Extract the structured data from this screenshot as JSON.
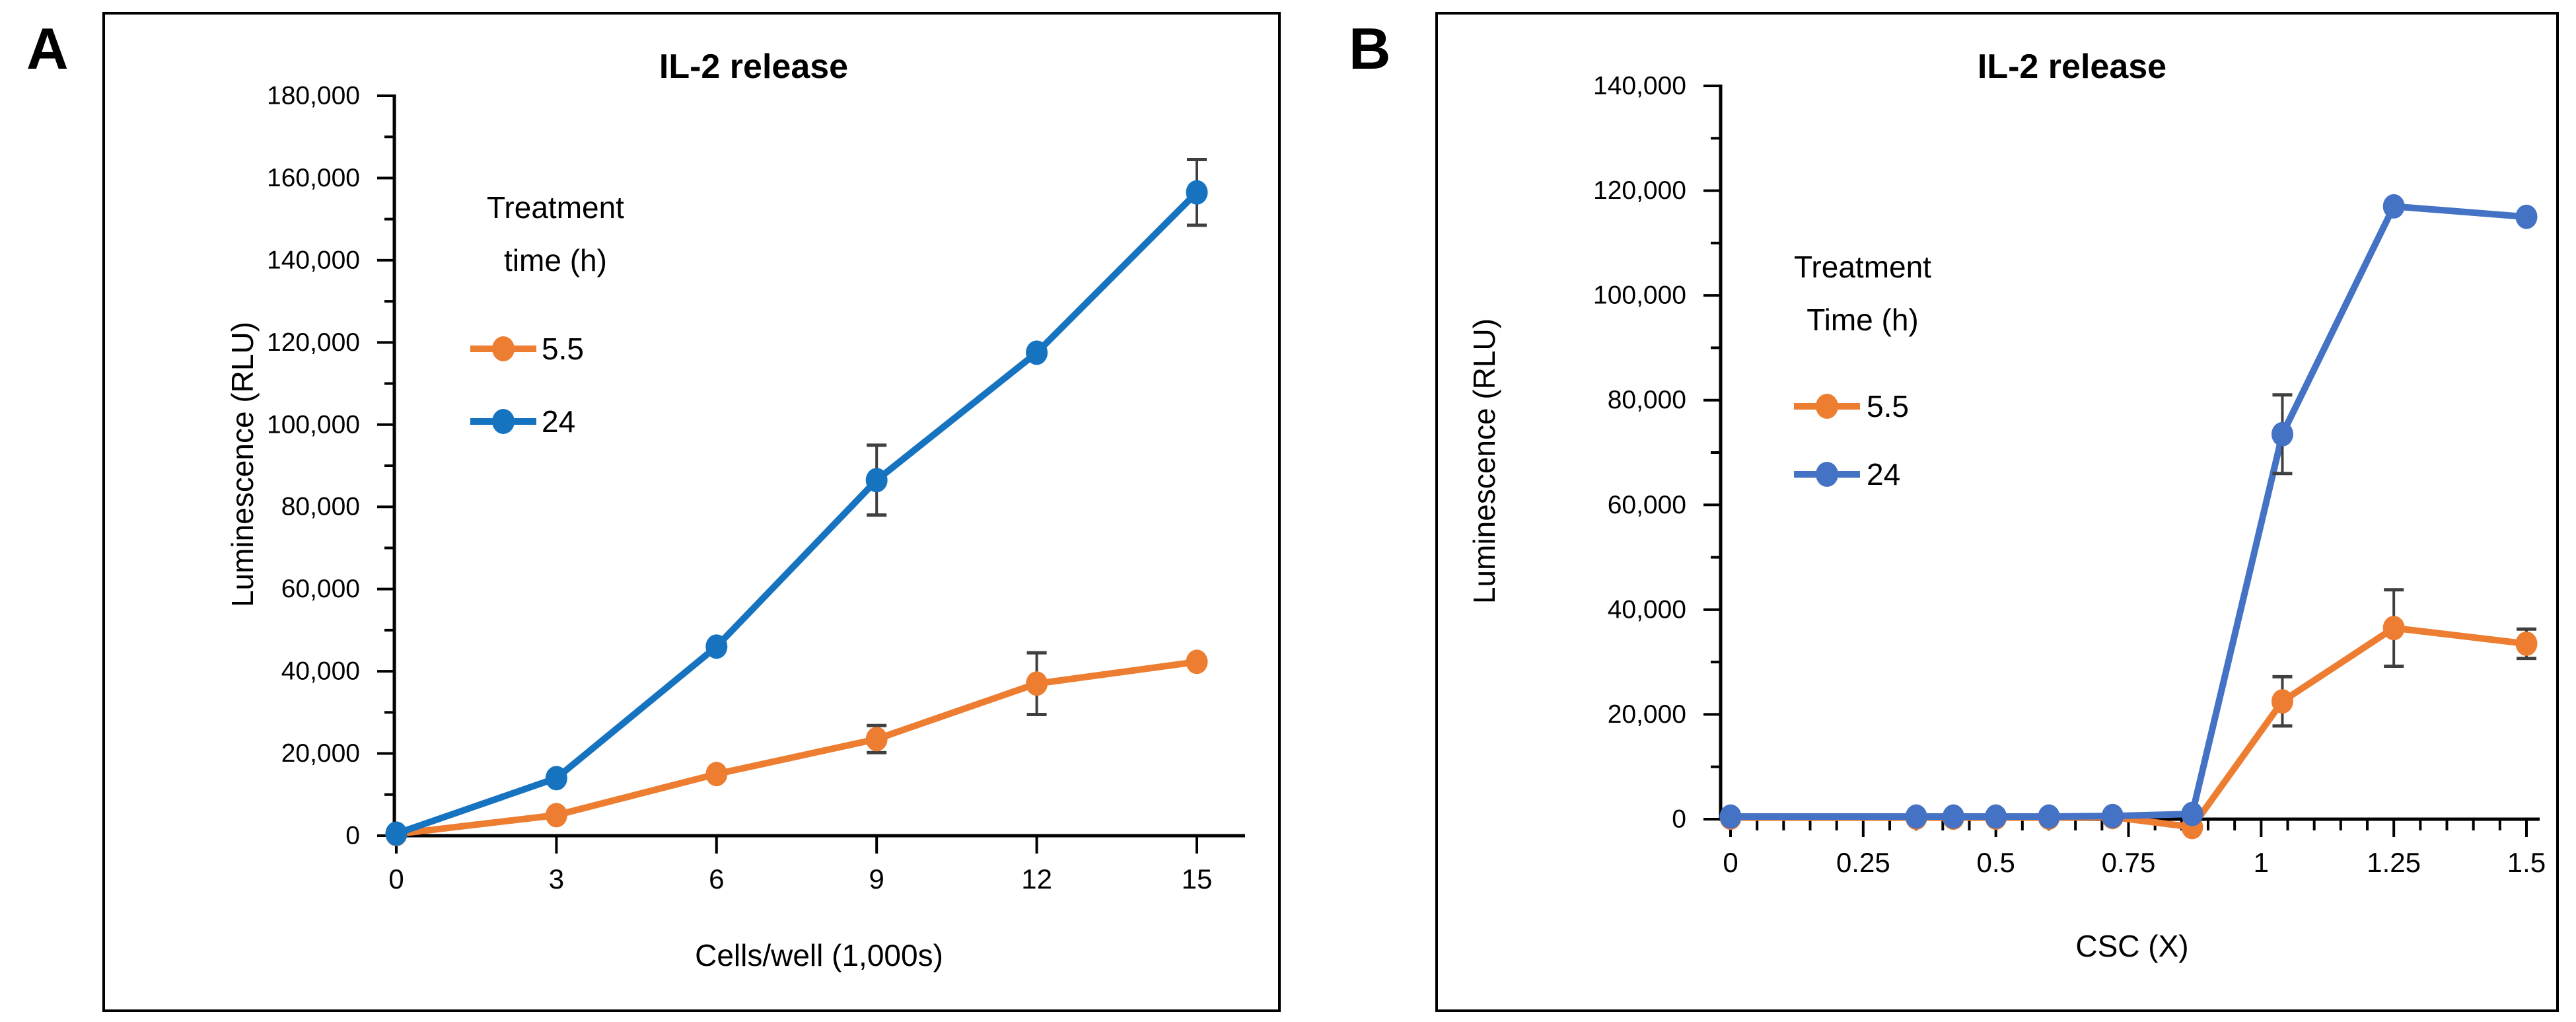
{
  "figure": {
    "background": "#ffffff",
    "text_color": "#000000",
    "error_bar_color": "#3f3f3f"
  },
  "chart_data": [
    {
      "id": "A",
      "panel_letter": "A",
      "type": "line",
      "title": "IL-2 release",
      "xlabel": "Cells/well (1,000s)",
      "ylabel": "Luminescence (RLU)",
      "legend": {
        "title_lines": [
          "Treatment",
          "time (h)"
        ],
        "position": "upper-left-inside"
      },
      "xlim": [
        0,
        15.9
      ],
      "ylim": [
        0,
        180000
      ],
      "xticks": [
        0,
        3,
        6,
        9,
        12,
        15
      ],
      "ytick_major": 20000,
      "ytick_minor": 10000,
      "grid": false,
      "x": [
        0,
        3,
        6,
        9,
        12,
        15
      ],
      "series": [
        {
          "name": "5.5",
          "color": "#ED7D31",
          "values": [
            400,
            5000,
            15000,
            23500,
            37000,
            42300
          ],
          "errors": [
            0,
            0,
            0,
            3300,
            7500,
            0
          ]
        },
        {
          "name": "24",
          "color": "#1673C0",
          "values": [
            500,
            14000,
            46000,
            86500,
            117500,
            156500
          ],
          "errors": [
            0,
            0,
            0,
            8500,
            0,
            8000
          ]
        }
      ]
    },
    {
      "id": "B",
      "panel_letter": "B",
      "type": "line",
      "title": "IL-2 release",
      "xlabel": "CSC (X)",
      "ylabel": "Luminescence (RLU)",
      "legend": {
        "title_lines": [
          "Treatment",
          "Time (h)"
        ],
        "position": "upper-left-inside"
      },
      "xlim": [
        0,
        1.55
      ],
      "ylim": [
        0,
        140000
      ],
      "xticks": [
        0,
        0.25,
        0.5,
        0.75,
        1,
        1.25,
        1.5
      ],
      "xtick_minor": 0.05,
      "ytick_major": 20000,
      "ytick_minor": 10000,
      "grid": false,
      "x": [
        0,
        0.35,
        0.42,
        0.5,
        0.6,
        0.72,
        0.87,
        1.04,
        1.25,
        1.5
      ],
      "series": [
        {
          "name": "5.5",
          "color": "#ED7D31",
          "values": [
            300,
            300,
            300,
            300,
            300,
            400,
            -1500,
            22500,
            36500,
            33500
          ],
          "errors": [
            0,
            0,
            0,
            0,
            0,
            0,
            0,
            4700,
            7300,
            2800
          ]
        },
        {
          "name": "24",
          "color": "#4472C4",
          "values": [
            500,
            500,
            500,
            500,
            500,
            600,
            1000,
            73500,
            117000,
            115000
          ],
          "errors": [
            0,
            0,
            0,
            0,
            0,
            0,
            0,
            7500,
            0,
            0
          ]
        }
      ]
    }
  ]
}
